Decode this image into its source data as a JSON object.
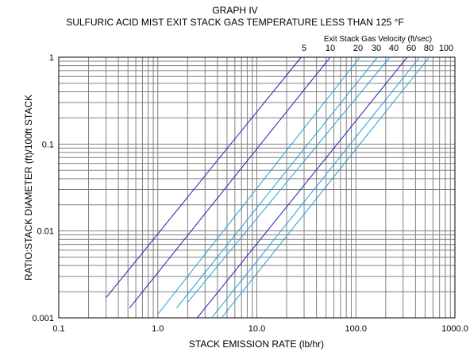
{
  "chart_data": {
    "type": "line",
    "title": "GRAPH IV",
    "subtitle": "SULFURIC ACID MIST EXIT STACK GAS TEMPERATURE LESS THAN 125 °F",
    "xlabel": "STACK EMISSION RATE (lb/hr)",
    "ylabel": "RATIO:STACK DIAMETER (ft)/100ft STACK",
    "x_scale": "log",
    "y_scale": "log",
    "xlim": [
      0.1,
      1000
    ],
    "ylim": [
      0.001,
      1
    ],
    "grid": true,
    "x_ticks": [
      {
        "value": 0.1,
        "label": "0.1"
      },
      {
        "value": 1,
        "label": "1.0"
      },
      {
        "value": 10,
        "label": "10.0"
      },
      {
        "value": 100,
        "label": "100.0"
      },
      {
        "value": 1000,
        "label": "1000.0"
      }
    ],
    "y_ticks": [
      {
        "value": 0.001,
        "label": "0.001"
      },
      {
        "value": 0.01,
        "label": "0.01"
      },
      {
        "value": 0.1,
        "label": "0.1"
      },
      {
        "value": 1,
        "label": "1"
      }
    ],
    "series_legend_title": "Exit Stack Gas Velocity (ft/sec)",
    "colors": {
      "dark": "#2020b0",
      "light": "#20a0d8",
      "grid": "#808080",
      "axis": "#000000"
    },
    "series": [
      {
        "name": "5",
        "color": "dark",
        "x": [
          0.3,
          28
        ],
        "y": [
          0.0017,
          1
        ]
      },
      {
        "name": "10",
        "color": "dark",
        "x": [
          0.52,
          55
        ],
        "y": [
          0.0013,
          1
        ]
      },
      {
        "name": "20",
        "color": "light",
        "x": [
          1.0,
          110
        ],
        "y": [
          0.0011,
          1
        ]
      },
      {
        "name": "30",
        "color": "light",
        "x": [
          1.55,
          165
        ],
        "y": [
          0.0013,
          1
        ]
      },
      {
        "name": "40",
        "color": "light",
        "x": [
          2.0,
          220
        ],
        "y": [
          0.0015,
          1
        ]
      },
      {
        "name": "60",
        "color": "dark",
        "x": [
          2.5,
          330
        ],
        "y": [
          0.001,
          1
        ]
      },
      {
        "name": "80",
        "color": "light",
        "x": [
          3.5,
          440
        ],
        "y": [
          0.001,
          1
        ]
      },
      {
        "name": "100",
        "color": "light",
        "x": [
          4.4,
          550
        ],
        "y": [
          0.001,
          1
        ]
      }
    ]
  }
}
